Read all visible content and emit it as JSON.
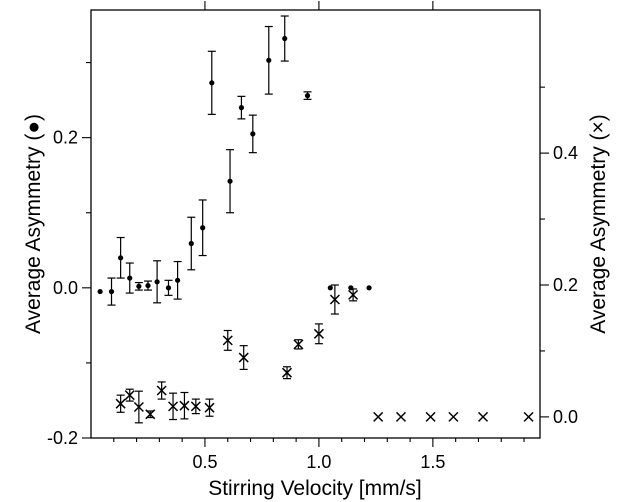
{
  "chart_data": {
    "type": "scatter",
    "xlabel": "Stirring Velocity [mm/s]",
    "ylabel_left": "Average Asymmetry (●)",
    "ylabel_right": "Average Asymmetry (×)",
    "xlim": [
      0.0,
      1.97
    ],
    "ylim_left": [
      -0.2,
      0.37
    ],
    "ylim_right": [
      -0.032,
      0.617
    ],
    "x_ticks": [
      0.5,
      1.0,
      1.5
    ],
    "x_tick_labels": [
      "0.5",
      "1.0",
      "1.5"
    ],
    "y_left_ticks": [
      -0.2,
      0.0,
      0.2
    ],
    "y_left_tick_labels": [
      "-0.2",
      "0.0",
      "0.2"
    ],
    "y_right_ticks": [
      0.0,
      0.2,
      0.4
    ],
    "y_right_tick_labels": [
      "0.0",
      "0.2",
      "0.4"
    ],
    "y_left_minor": [
      -0.1,
      0.1,
      0.3
    ],
    "y_right_minor": [
      0.1,
      0.3,
      0.5
    ],
    "grid": false,
    "series": [
      {
        "marker": "dot",
        "axis": "left",
        "x": [
          0.04,
          0.09,
          0.13,
          0.17,
          0.21,
          0.25,
          0.29,
          0.34,
          0.38,
          0.44,
          0.49,
          0.53,
          0.61,
          0.66,
          0.71,
          0.78,
          0.85,
          0.95,
          1.05,
          1.14,
          1.22
        ],
        "y": [
          -0.005,
          -0.005,
          0.04,
          0.013,
          0.002,
          0.003,
          0.008,
          0.0,
          0.01,
          0.059,
          0.08,
          0.273,
          0.142,
          0.24,
          0.205,
          0.303,
          0.332,
          0.256,
          0.0,
          0.0,
          0.0
        ],
        "err": [
          0.0,
          0.018,
          0.027,
          0.02,
          0.005,
          0.006,
          0.028,
          0.01,
          0.025,
          0.035,
          0.037,
          0.042,
          0.042,
          0.015,
          0.025,
          0.045,
          0.03,
          0.005,
          0.0,
          0.0,
          0.0
        ]
      },
      {
        "marker": "cross",
        "axis": "right",
        "x": [
          0.13,
          0.17,
          0.21,
          0.26,
          0.31,
          0.36,
          0.41,
          0.46,
          0.52,
          0.6,
          0.67,
          0.86,
          0.91,
          1.0,
          1.07,
          1.15,
          1.26,
          1.36,
          1.49,
          1.59,
          1.72,
          1.92
        ],
        "y": [
          0.02,
          0.033,
          0.015,
          0.004,
          0.04,
          0.016,
          0.017,
          0.016,
          0.014,
          0.116,
          0.09,
          0.067,
          0.11,
          0.126,
          0.178,
          0.185,
          0.0,
          0.0,
          0.0,
          0.0,
          0.0,
          0.0
        ],
        "err": [
          0.013,
          0.009,
          0.024,
          0.005,
          0.013,
          0.02,
          0.02,
          0.011,
          0.013,
          0.015,
          0.018,
          0.009,
          0.007,
          0.015,
          0.022,
          0.009,
          0.0,
          0.0,
          0.0,
          0.0,
          0.0,
          0.0
        ]
      }
    ]
  }
}
